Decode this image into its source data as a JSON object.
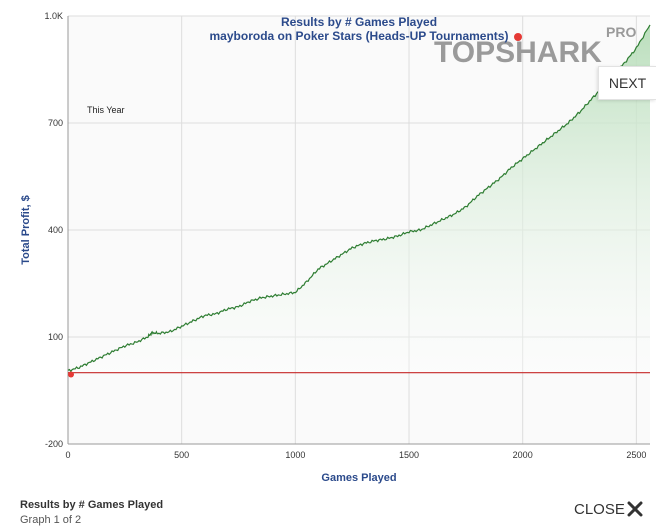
{
  "chart_data": {
    "type": "line",
    "title": "Results by # Games Played",
    "subtitle": "mayboroda on Poker Stars (Heads-UP Tournaments)",
    "annotation": "This Year",
    "xlabel": "Games Played",
    "ylabel": "Total Profit, $",
    "xlim": [
      0,
      2560
    ],
    "ylim": [
      -200,
      1000
    ],
    "x_ticks": [
      0,
      500,
      1000,
      1500,
      2000,
      2500
    ],
    "y_ticks": [
      -200,
      100,
      400,
      700,
      1000
    ],
    "y_tick_labels": [
      "-200",
      "100",
      "400",
      "700",
      "1.0K"
    ],
    "grid": true,
    "series": [
      {
        "color": "#2e7d32",
        "fill": "#c8e6c9",
        "x": [
          0,
          50,
          100,
          150,
          200,
          250,
          300,
          350,
          370,
          400,
          450,
          500,
          550,
          600,
          650,
          700,
          750,
          800,
          850,
          900,
          950,
          1000,
          1050,
          1100,
          1150,
          1200,
          1250,
          1300,
          1350,
          1400,
          1450,
          1500,
          1550,
          1600,
          1650,
          1700,
          1750,
          1800,
          1850,
          1900,
          1950,
          2000,
          2050,
          2100,
          2150,
          2200,
          2250,
          2300,
          2350,
          2400,
          2450,
          2500,
          2560
        ],
        "y": [
          5,
          15,
          30,
          45,
          60,
          75,
          85,
          100,
          112,
          110,
          115,
          130,
          145,
          160,
          165,
          178,
          185,
          200,
          210,
          215,
          220,
          225,
          255,
          290,
          310,
          330,
          350,
          362,
          370,
          375,
          383,
          395,
          400,
          415,
          430,
          445,
          465,
          495,
          520,
          545,
          575,
          600,
          625,
          650,
          675,
          700,
          730,
          765,
          800,
          835,
          870,
          910,
          975
        ]
      },
      {
        "color": "#c62828",
        "x": [
          0,
          2560
        ],
        "y": [
          0,
          0
        ]
      }
    ],
    "marker": {
      "x": 10,
      "y": -5,
      "color": "#e53935"
    }
  },
  "logo": {
    "text": "TOPSHARK",
    "badge": "PRO"
  },
  "next_label": "NEXT",
  "footer": {
    "title": "Results by # Games Played",
    "subtitle": "Graph 1 of 2"
  },
  "close_label": "CLOSE"
}
